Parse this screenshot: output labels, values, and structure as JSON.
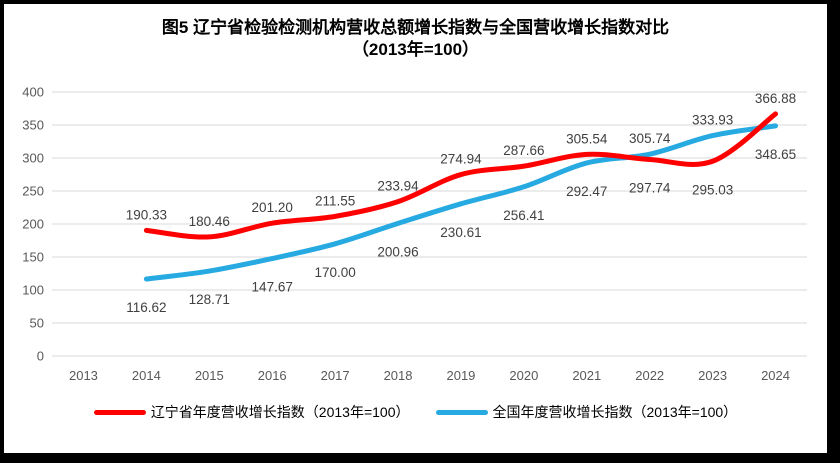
{
  "title": {
    "line1": "图5  辽宁省检验检测机构营收总额增长指数与全国营收增长指数对比",
    "line2": "（2013年=100）"
  },
  "chart_data": {
    "type": "line",
    "categories": [
      "2013",
      "2014",
      "2015",
      "2016",
      "2017",
      "2018",
      "2019",
      "2020",
      "2021",
      "2022",
      "2023",
      "2024"
    ],
    "series": [
      {
        "name": "辽宁省年度营收增长指数（2013年=100）",
        "color": "#ff0000",
        "values": [
          null,
          190.33,
          180.46,
          201.2,
          211.55,
          233.94,
          274.94,
          287.66,
          305.54,
          297.74,
          295.03,
          366.88
        ],
        "label_position": [
          null,
          "above",
          "above",
          "above",
          "above",
          "above",
          "above",
          "above",
          "above",
          "below",
          "below",
          "above"
        ]
      },
      {
        "name": "全国年度营收增长指数（2013年=100）",
        "color": "#27aae1",
        "values": [
          null,
          116.62,
          128.71,
          147.67,
          170.0,
          200.96,
          230.61,
          256.41,
          292.47,
          305.74,
          333.93,
          348.65
        ],
        "label_position": [
          null,
          "below",
          "below",
          "below",
          "below",
          "below",
          "below",
          "below",
          "below",
          "above",
          "above",
          "below"
        ]
      }
    ],
    "title": "图5  辽宁省检验检测机构营收总额增长指数与全国营收增长指数对比（2013年=100）",
    "xlabel": "",
    "ylabel": "",
    "ylim": [
      0,
      400
    ],
    "ytick_step": 50,
    "grid": true,
    "legend_position": "bottom",
    "smoothed_lines": true,
    "colors": {
      "gridline": "#d9d9d9",
      "axis_tick_text": "#595959",
      "data_label_text": "#404040",
      "title_text": "#000000",
      "frame_border": "#000000"
    }
  }
}
